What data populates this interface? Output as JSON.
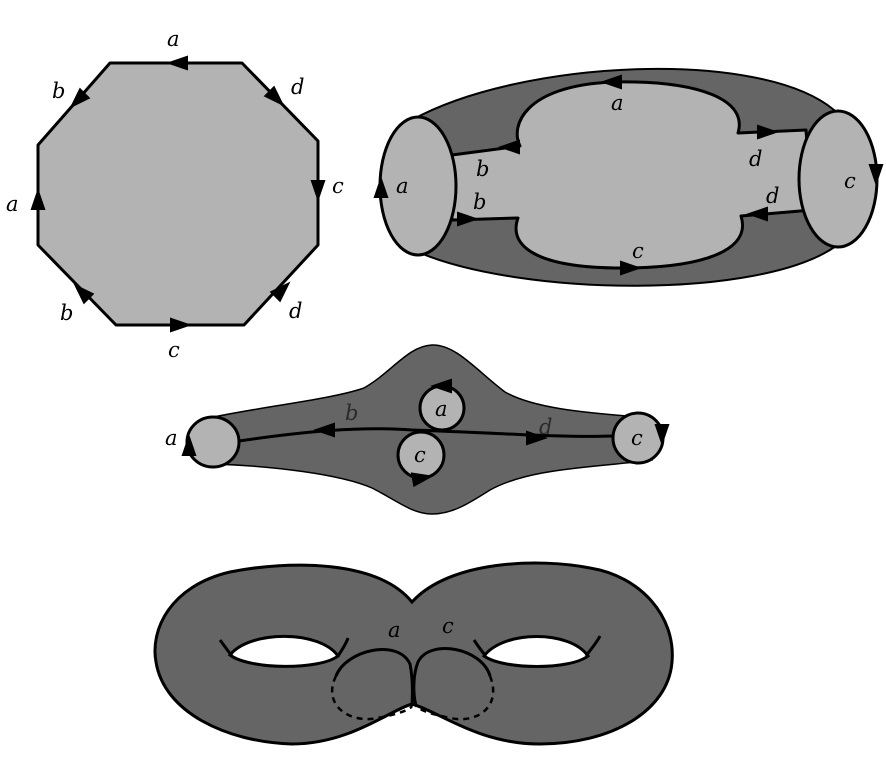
{
  "colors": {
    "light_face": "#b3b3b3",
    "dark_surface": "#656565",
    "stroke": "#000000",
    "background": "#ffffff"
  },
  "octagon": {
    "labels": {
      "top": "a",
      "upper_left": "b",
      "upper_right": "d",
      "left": "a",
      "right": "c",
      "lower_left": "b",
      "lower_right": "d",
      "bottom": "c"
    }
  },
  "cylinder": {
    "labels": {
      "top": "a",
      "upper_left": "b",
      "upper_right": "d",
      "left_end": "a",
      "right_end": "c",
      "lower_left": "b",
      "lower_right": "d",
      "bottom": "c"
    }
  },
  "disk_with_holes": {
    "labels": {
      "left_end": "a",
      "left_path": "b",
      "upper_hole": "a",
      "lower_hole": "c",
      "right_path": "d",
      "right_end": "c"
    }
  },
  "double_torus": {
    "labels": {
      "left_curve": "a",
      "right_curve": "c"
    }
  }
}
